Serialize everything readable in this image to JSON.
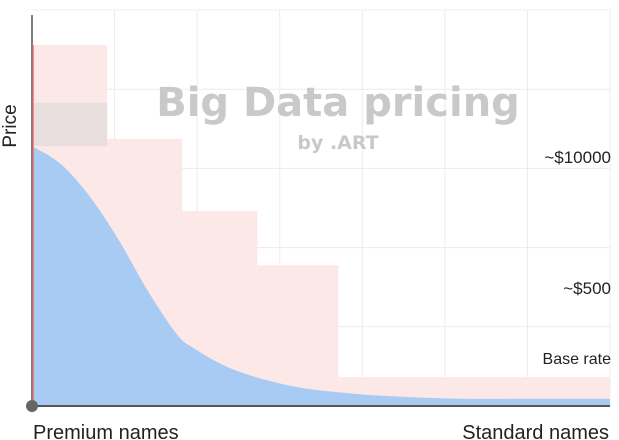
{
  "chart_data": {
    "type": "area",
    "title": "Big Data pricing",
    "subtitle": "by .ART",
    "ylabel": "Price",
    "x_start_label": "Premium names",
    "x_end_label": "Standard names",
    "annotations": [
      "~$10000",
      "~$500",
      "Base rate"
    ],
    "grid": true,
    "xlim": [
      0,
      100
    ],
    "ylim": [
      0,
      100
    ],
    "x": [
      0,
      5,
      10,
      15,
      20,
      25,
      28,
      35,
      45,
      55,
      65,
      75,
      85,
      100
    ],
    "series": [
      {
        "values": [
          72,
          67,
          58,
          46,
          32,
          20,
          16,
          10,
          5.5,
          3.5,
          2.5,
          2,
          2,
          2
        ]
      }
    ],
    "steps": [
      {
        "x0": 0,
        "x1": 13,
        "y": 100
      },
      {
        "x0": 13,
        "x1": 26,
        "y": 74
      },
      {
        "x0": 26,
        "x1": 39,
        "y": 54
      },
      {
        "x0": 39,
        "x1": 53,
        "y": 39
      },
      {
        "x0": 53,
        "x1": 100,
        "y": 8
      }
    ],
    "colors": {
      "area": "#a8cbf4",
      "steps": "#fde8e8",
      "overlap": "#e3dbdb",
      "axis": "#555555",
      "marker": "#e57373"
    }
  }
}
